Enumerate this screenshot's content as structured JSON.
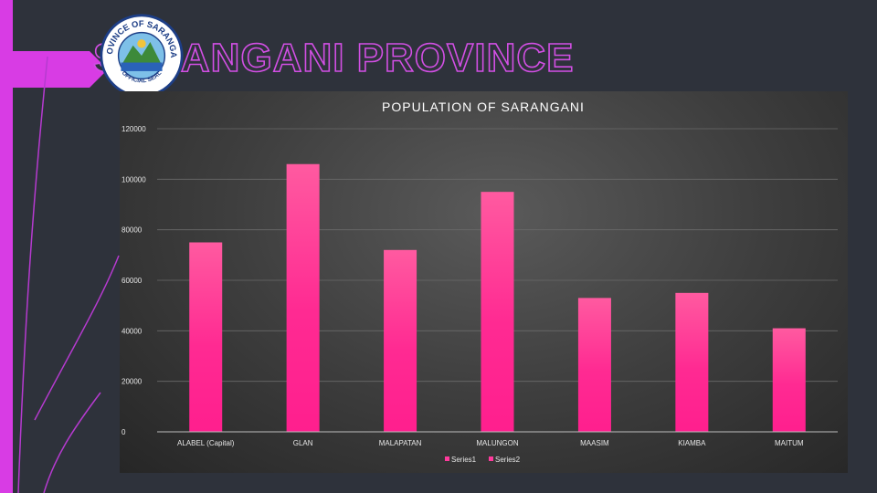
{
  "slide": {
    "title": "SARANGANI PROVINCE",
    "seal": {
      "top_text": "PROVINCE OF SARANGANI",
      "bottom_text": "OFFICIAL SEAL"
    }
  },
  "colors": {
    "background": "#2e323b",
    "accent": "#e040d8",
    "bar_top": "#ff5aa0",
    "bar_bottom": "#ff1f8e"
  },
  "chart_data": {
    "type": "bar",
    "title": "POPULATION OF SARANGANI",
    "categories": [
      "ALABEL (Capital)",
      "GLAN",
      "MALAPATAN",
      "MALUNGON",
      "MAASIM",
      "KIAMBA",
      "MAITUM"
    ],
    "series": [
      {
        "name": "Series1",
        "values": [
          75000,
          106000,
          72000,
          95000,
          null,
          null,
          null
        ]
      },
      {
        "name": "Series2",
        "values": [
          null,
          null,
          null,
          null,
          53000,
          55000,
          41000
        ]
      }
    ],
    "ylim": [
      0,
      120000
    ],
    "yticks": [
      "0",
      "20000",
      "40000",
      "60000",
      "80000",
      "100000",
      "120000"
    ],
    "grid": true,
    "legend": "bottom"
  }
}
